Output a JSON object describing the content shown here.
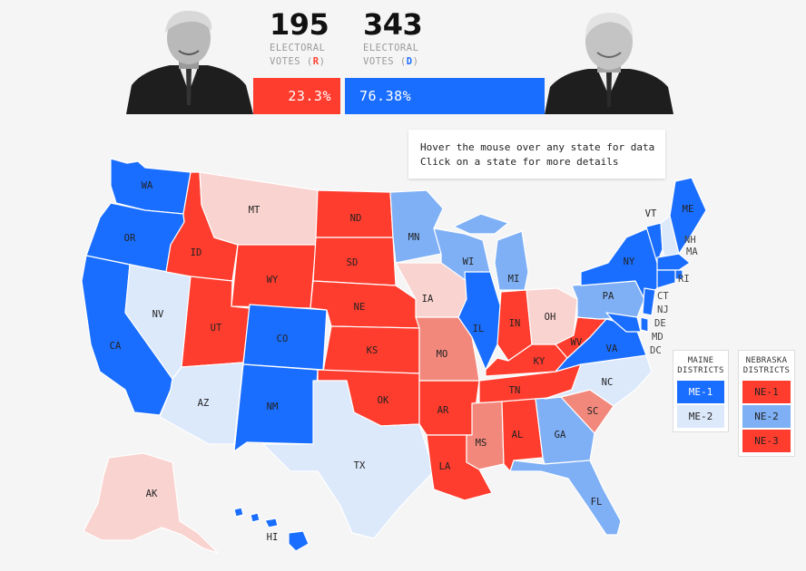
{
  "header": {
    "republican": {
      "ev": "195",
      "label_line1": "ELECTORAL",
      "label_line2": "VOTES",
      "party_tag": "R",
      "pct": "23.3%",
      "color": "#ff3d2e"
    },
    "democrat": {
      "ev": "343",
      "label_line1": "ELECTORAL",
      "label_line2": "VOTES",
      "party_tag": "D",
      "pct": "76.38%",
      "color": "#1a6eff"
    }
  },
  "tooltip": {
    "line1": "Hover the mouse over any state for data",
    "line2": "Click on a state for more details"
  },
  "colors": {
    "safe_d": "#1a6eff",
    "likely_d": "#7fb0f5",
    "lean_d": "#dce9fb",
    "safe_r": "#ff3d2e",
    "likely_r": "#f2887c",
    "lean_r": "#f9d3cf"
  },
  "states": {
    "WA": "WA",
    "OR": "OR",
    "CA": "CA",
    "NV": "NV",
    "ID": "ID",
    "MT": "MT",
    "WY": "WY",
    "UT": "UT",
    "AZ": "AZ",
    "CO": "CO",
    "NM": "NM",
    "ND": "ND",
    "SD": "SD",
    "NE": "NE",
    "KS": "KS",
    "OK": "OK",
    "TX": "TX",
    "MN": "MN",
    "IA": "IA",
    "MO": "MO",
    "AR": "AR",
    "LA": "LA",
    "WI": "WI",
    "IL": "IL",
    "MI": "MI",
    "IN": "IN",
    "OH": "OH",
    "KY": "KY",
    "TN": "TN",
    "MS": "MS",
    "AL": "AL",
    "GA": "GA",
    "FL": "FL",
    "SC": "SC",
    "NC": "NC",
    "VA": "VA",
    "WV": "WV",
    "PA": "PA",
    "NY": "NY",
    "VT": "VT",
    "NH": "NH",
    "ME": "ME",
    "MA": "MA",
    "RI": "RI",
    "CT": "CT",
    "NJ": "NJ",
    "DE": "DE",
    "MD": "MD",
    "DC": "DC",
    "AK": "AK",
    "HI": "HI"
  },
  "legend_me": {
    "title_line1": "MAINE",
    "title_line2": "DISTRICTS",
    "items": [
      "ME-1",
      "ME-2"
    ]
  },
  "legend_ne": {
    "title_line1": "NEBRASKA",
    "title_line2": "DISTRICTS",
    "items": [
      "NE-1",
      "NE-2",
      "NE-3"
    ]
  }
}
